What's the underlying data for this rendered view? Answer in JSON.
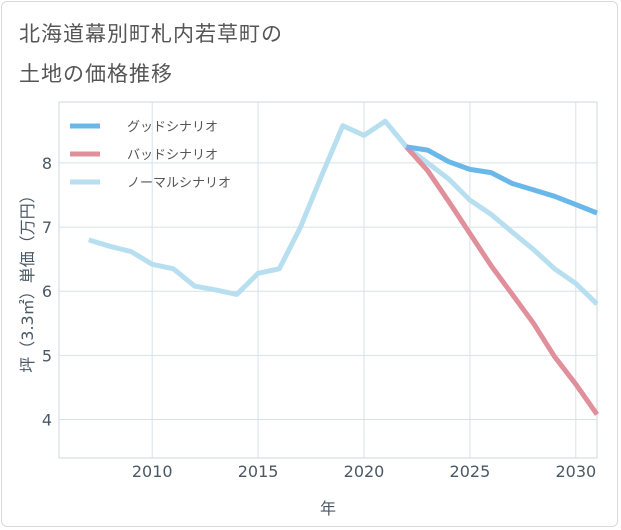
{
  "title_lines": [
    "北海道幕別町札内若草町の",
    "土地の価格推移"
  ],
  "chart_data": {
    "type": "line",
    "title": "北海道幕別町札内若草町の土地の価格推移",
    "xlabel": "年",
    "ylabel": "坪（3.3㎡）単価（万円）",
    "xlim": [
      2005.6,
      2031
    ],
    "ylim": [
      3.4,
      8.95
    ],
    "x_ticks": [
      2010,
      2015,
      2020,
      2025,
      2030
    ],
    "y_ticks": [
      4,
      5,
      6,
      7,
      8
    ],
    "grid": true,
    "legend_position": "top-left",
    "series": [
      {
        "name": "グッドシナリオ",
        "color": "#6ab8ea",
        "x": [
          2022,
          2023,
          2024,
          2025,
          2026,
          2027,
          2028,
          2029,
          2030,
          2031
        ],
        "y": [
          8.25,
          8.2,
          8.02,
          7.9,
          7.85,
          7.68,
          7.58,
          7.48,
          7.35,
          7.22
        ]
      },
      {
        "name": "バッドシナリオ",
        "color": "#e0909a",
        "x": [
          2022,
          2023,
          2024,
          2025,
          2026,
          2027,
          2028,
          2029,
          2030,
          2031
        ],
        "y": [
          8.25,
          7.88,
          7.4,
          6.9,
          6.4,
          5.95,
          5.5,
          4.98,
          4.55,
          4.08
        ]
      },
      {
        "name": "ノーマルシナリオ",
        "color": "#b8dff0",
        "x": [
          2007,
          2008,
          2009,
          2010,
          2011,
          2012,
          2013,
          2014,
          2015,
          2016,
          2017,
          2018,
          2019,
          2020,
          2021,
          2022,
          2023,
          2024,
          2025,
          2026,
          2027,
          2028,
          2029,
          2030,
          2031
        ],
        "y": [
          6.8,
          6.7,
          6.62,
          6.42,
          6.35,
          6.08,
          6.02,
          5.95,
          6.28,
          6.35,
          7.0,
          7.8,
          8.58,
          8.43,
          8.65,
          8.25,
          8.0,
          7.75,
          7.42,
          7.2,
          6.92,
          6.65,
          6.35,
          6.12,
          5.8
        ]
      }
    ]
  }
}
